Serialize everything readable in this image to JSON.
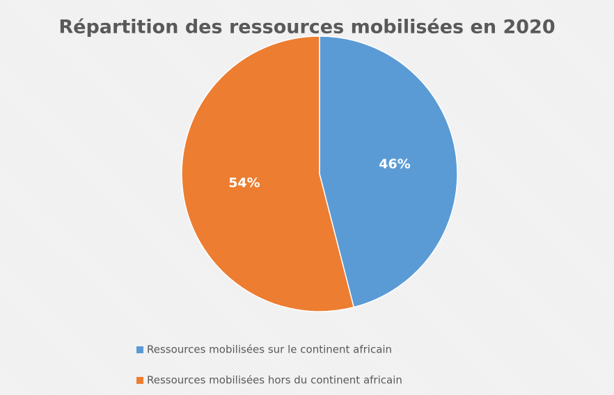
{
  "chart_data": {
    "type": "pie",
    "title": "Répartition des ressources mobilisées en 2020",
    "categories": [
      "Ressources mobilisées sur le continent africain",
      "Ressources mobilisées hors du continent africain"
    ],
    "values": [
      46,
      54
    ],
    "value_labels": [
      "46%",
      "54%"
    ],
    "colors": [
      "#5b9bd5",
      "#ed7d31"
    ],
    "legend": "bottom"
  }
}
